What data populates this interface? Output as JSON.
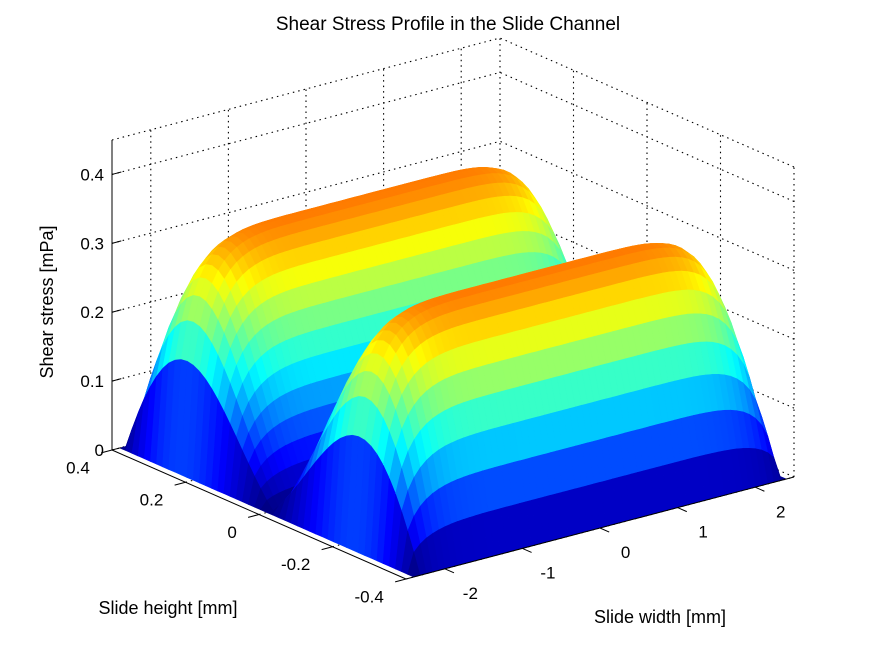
{
  "chart_data": {
    "type": "surface3d",
    "title": "Shear Stress Profile in the Slide Channel",
    "xlabel": "Slide width [mm]",
    "ylabel": "Slide height [mm]",
    "zlabel": "Shear stress [mPa]",
    "xlim": [
      -2.5,
      2.5
    ],
    "ylim": [
      -0.4,
      0.4
    ],
    "zlim": [
      0,
      0.45
    ],
    "x_ticks": [
      "-2",
      "-1",
      "0",
      "1",
      "2"
    ],
    "y_ticks": [
      "-0.4",
      "-0.2",
      "0",
      "0.2",
      "0.4"
    ],
    "z_ticks": [
      "0",
      "0.1",
      "0.2",
      "0.3",
      "0.4"
    ],
    "peak_value": 0.44,
    "colormap": "jet",
    "grid": true
  }
}
